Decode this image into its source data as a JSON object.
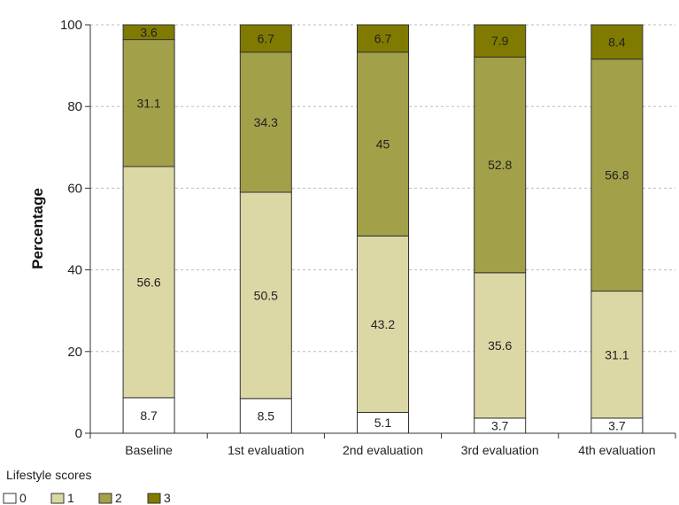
{
  "chart_data": {
    "type": "bar",
    "stacked": true,
    "categories": [
      "Baseline",
      "1st evaluation",
      "2nd evaluation",
      "3rd evaluation",
      "4th evaluation"
    ],
    "series": [
      {
        "name": "0",
        "color": "#ffffff",
        "values": [
          8.7,
          8.5,
          5.1,
          3.7,
          3.7
        ]
      },
      {
        "name": "1",
        "color": "#dcd8a6",
        "values": [
          56.6,
          50.5,
          43.2,
          35.6,
          31.1
        ]
      },
      {
        "name": "2",
        "color": "#a3a04a",
        "values": [
          31.1,
          34.3,
          45,
          52.8,
          56.8
        ]
      },
      {
        "name": "3",
        "color": "#807a00",
        "values": [
          3.6,
          6.7,
          6.7,
          7.9,
          8.4
        ]
      }
    ],
    "ylabel": "Percentage",
    "xlabel": "",
    "ylim": [
      0,
      100
    ],
    "yticks": [
      0,
      20,
      40,
      60,
      80,
      100
    ],
    "grid": true,
    "legend": {
      "title": "Lifestyle scores",
      "placement": "bottom-left"
    }
  }
}
